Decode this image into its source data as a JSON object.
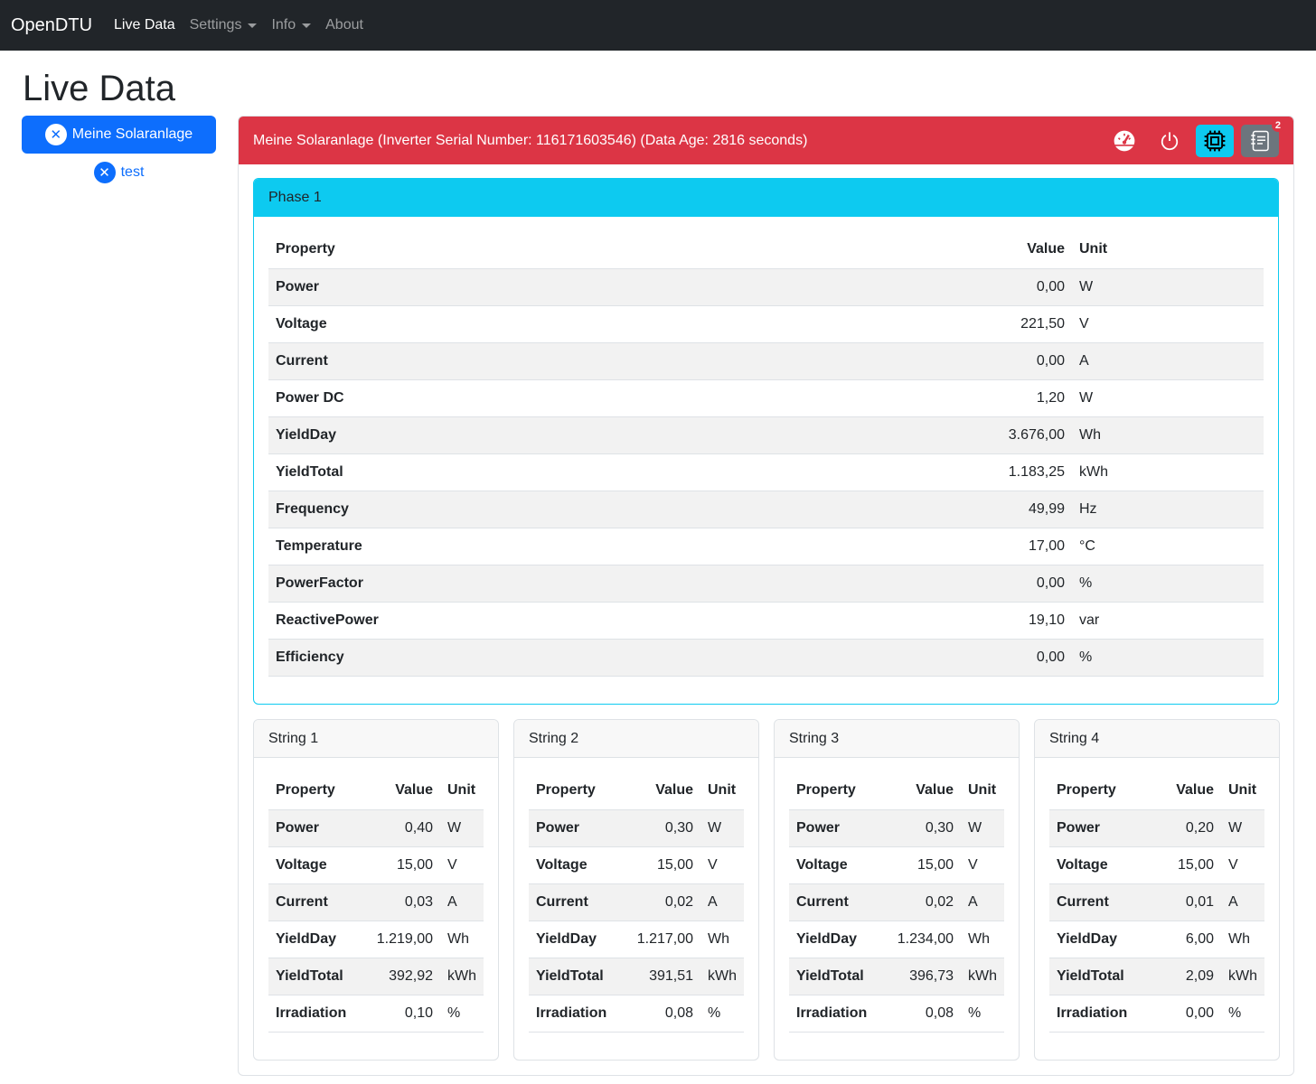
{
  "nav": {
    "brand": "OpenDTU",
    "items": [
      {
        "label": "Live Data",
        "active": true
      },
      {
        "label": "Settings",
        "dropdown": true
      },
      {
        "label": "Info",
        "dropdown": true
      },
      {
        "label": "About"
      }
    ]
  },
  "page_title": "Live Data",
  "inverters": [
    {
      "name": "Meine Solaranlage",
      "active": true,
      "icon": "x-circle-icon"
    },
    {
      "name": "test",
      "active": false,
      "icon": "x-circle-icon"
    }
  ],
  "header": {
    "title": "Meine Solaranlage (Inverter Serial Number: 116171603546) (Data Age: 2816 seconds)",
    "color": "#dc3545",
    "buttons": [
      {
        "icon": "speedometer-icon"
      },
      {
        "icon": "power-icon"
      },
      {
        "icon": "cpu-icon"
      },
      {
        "icon": "journal-text-icon",
        "badge": "2"
      }
    ]
  },
  "cols": {
    "property": "Property",
    "value": "Value",
    "unit": "Unit"
  },
  "phase": {
    "title": "Phase 1",
    "rows": [
      [
        "Power",
        "0,00",
        "W"
      ],
      [
        "Voltage",
        "221,50",
        "V"
      ],
      [
        "Current",
        "0,00",
        "A"
      ],
      [
        "Power DC",
        "1,20",
        "W"
      ],
      [
        "YieldDay",
        "3.676,00",
        "Wh"
      ],
      [
        "YieldTotal",
        "1.183,25",
        "kWh"
      ],
      [
        "Frequency",
        "49,99",
        "Hz"
      ],
      [
        "Temperature",
        "17,00",
        "°C"
      ],
      [
        "PowerFactor",
        "0,00",
        "%"
      ],
      [
        "ReactivePower",
        "19,10",
        "var"
      ],
      [
        "Efficiency",
        "0,00",
        "%"
      ]
    ]
  },
  "strings": [
    {
      "title": "String 1",
      "rows": [
        [
          "Power",
          "0,40",
          "W"
        ],
        [
          "Voltage",
          "15,00",
          "V"
        ],
        [
          "Current",
          "0,03",
          "A"
        ],
        [
          "YieldDay",
          "1.219,00",
          "Wh"
        ],
        [
          "YieldTotal",
          "392,92",
          "kWh"
        ],
        [
          "Irradiation",
          "0,10",
          "%"
        ]
      ]
    },
    {
      "title": "String 2",
      "rows": [
        [
          "Power",
          "0,30",
          "W"
        ],
        [
          "Voltage",
          "15,00",
          "V"
        ],
        [
          "Current",
          "0,02",
          "A"
        ],
        [
          "YieldDay",
          "1.217,00",
          "Wh"
        ],
        [
          "YieldTotal",
          "391,51",
          "kWh"
        ],
        [
          "Irradiation",
          "0,08",
          "%"
        ]
      ]
    },
    {
      "title": "String 3",
      "rows": [
        [
          "Power",
          "0,30",
          "W"
        ],
        [
          "Voltage",
          "15,00",
          "V"
        ],
        [
          "Current",
          "0,02",
          "A"
        ],
        [
          "YieldDay",
          "1.234,00",
          "Wh"
        ],
        [
          "YieldTotal",
          "396,73",
          "kWh"
        ],
        [
          "Irradiation",
          "0,08",
          "%"
        ]
      ]
    },
    {
      "title": "String 4",
      "rows": [
        [
          "Power",
          "0,20",
          "W"
        ],
        [
          "Voltage",
          "15,00",
          "V"
        ],
        [
          "Current",
          "0,01",
          "A"
        ],
        [
          "YieldDay",
          "6,00",
          "Wh"
        ],
        [
          "YieldTotal",
          "2,09",
          "kWh"
        ],
        [
          "Irradiation",
          "0,00",
          "%"
        ]
      ]
    }
  ]
}
